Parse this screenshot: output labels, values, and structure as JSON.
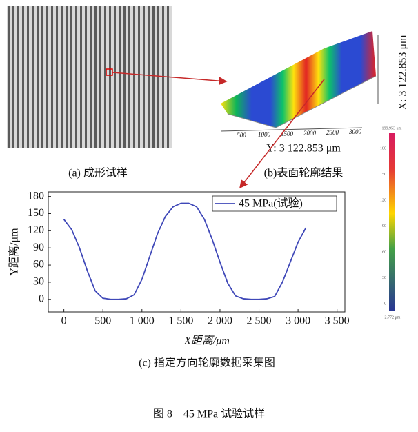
{
  "panel_a": {
    "caption": "(a) 成形试样"
  },
  "panel_b": {
    "caption": "(b)表面轮廓结果",
    "x_size_label": "X: 3 122.853 μm",
    "y_size_label": "Y: 3 122.853 μm",
    "axis_ticks": [
      "500",
      "1000",
      "1500",
      "2000",
      "2500",
      "3000"
    ],
    "colorbar": {
      "max_label": "199.953 μm",
      "min_label": "-2.772 μm",
      "ticks": [
        "180",
        "150",
        "120",
        "90",
        "60",
        "30",
        "0"
      ]
    }
  },
  "panel_c": {
    "caption": "(c) 指定方向轮廓数据采集图"
  },
  "chart_data": {
    "type": "line",
    "x_label": "X距离/μm",
    "y_label": "Y距离/μm",
    "x": [
      0,
      100,
      200,
      300,
      400,
      500,
      600,
      700,
      800,
      900,
      1000,
      1100,
      1200,
      1300,
      1400,
      1500,
      1600,
      1700,
      1800,
      1900,
      2000,
      2100,
      2200,
      2300,
      2400,
      2500,
      2600,
      2700,
      2800,
      2900,
      3000,
      3100
    ],
    "series": [
      {
        "name": "45 MPa(试验)",
        "color": "#3f48b8",
        "values": [
          140,
          122,
          90,
          50,
          15,
          2,
          0,
          0,
          1,
          8,
          35,
          75,
          115,
          145,
          162,
          168,
          168,
          162,
          140,
          105,
          65,
          28,
          6,
          1,
          0,
          0,
          1,
          5,
          30,
          65,
          100,
          125
        ]
      }
    ],
    "xlim": [
      -200,
      3600
    ],
    "ylim": [
      -22,
      188
    ],
    "xticks": [
      0,
      500,
      {
        "value": 1000,
        "label": "1 000"
      },
      {
        "value": 1500,
        "label": "1 500"
      },
      {
        "value": 2000,
        "label": "2 000"
      },
      {
        "value": 2500,
        "label": "2 500"
      },
      {
        "value": 3000,
        "label": "3 000"
      },
      {
        "value": 3500,
        "label": "3 500"
      }
    ],
    "yticks": [
      0,
      30,
      60,
      90,
      120,
      150,
      180
    ],
    "legend": "upper right"
  },
  "figure_caption": "图 8　45 MPa 试验试样"
}
